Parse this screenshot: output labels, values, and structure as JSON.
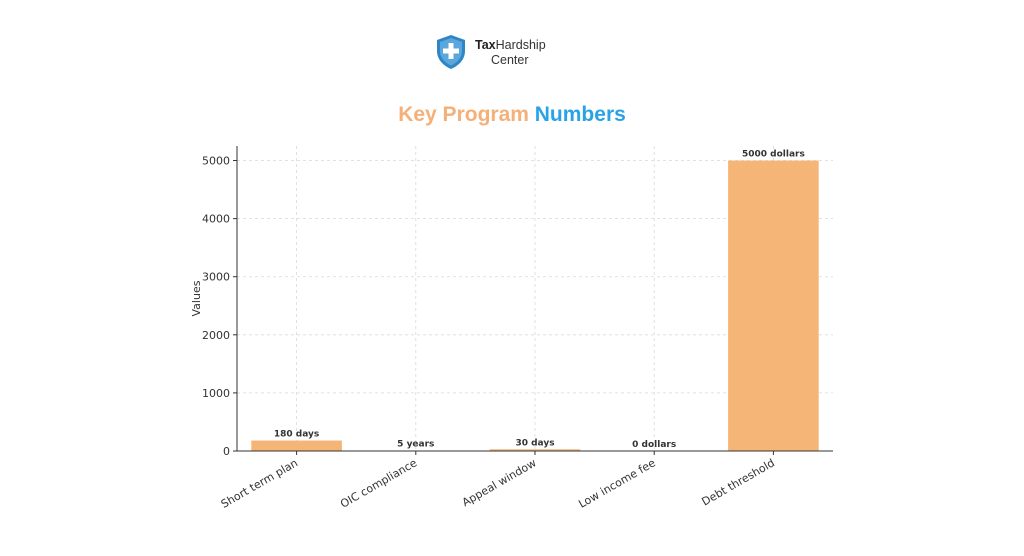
{
  "brand": {
    "name_bold": "Tax",
    "name_rest": "Hardship",
    "name_line2": "Center",
    "icon": "shield-cross-icon",
    "shield_color": "#2f86c6"
  },
  "colors": {
    "bar": "#f5b577",
    "title_part1": "#f5b077",
    "title_part2": "#2aa3e6"
  },
  "chart_data": {
    "type": "bar",
    "title_part1": "Key Program",
    "title_part2": "Numbers",
    "xlabel": "",
    "ylabel": "Values",
    "categories": [
      "Short term plan",
      "OIC compliance",
      "Appeal window",
      "Low income fee",
      "Debt threshold"
    ],
    "values": [
      180,
      5,
      30,
      0,
      5000
    ],
    "data_labels": [
      "180 days",
      "5 years",
      "30 days",
      "0 dollars",
      "5000 dollars"
    ],
    "yticks": [
      0,
      1000,
      2000,
      3000,
      4000,
      5000
    ],
    "ylim": [
      0,
      5250
    ],
    "grid": true
  }
}
